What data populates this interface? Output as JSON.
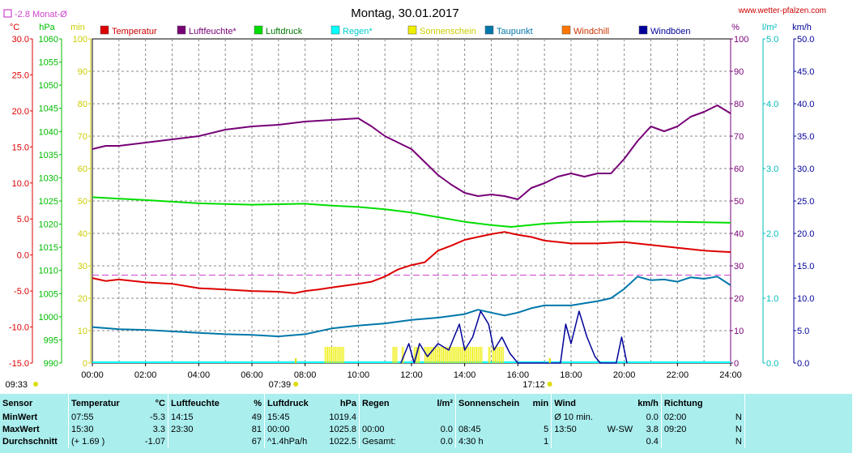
{
  "title": "Montag, 30.01.2017",
  "site": "www.wetter-pfalzen.com",
  "month_avg_label": "-2.8 Monat-Ø",
  "colors": {
    "temperature": "#dd0000",
    "humidity": "#770077",
    "pressure": "#00dd00",
    "rain": "#00ffff",
    "sunshine": "#eeee00",
    "dewpoint": "#0077aa",
    "windchill": "#ff7700",
    "gusts": "#000099",
    "month_avg": "#cc44cc"
  },
  "axes": {
    "temp": {
      "unit": "°C",
      "min": -15,
      "max": 30,
      "step": 5,
      "labels": [
        "-15.0",
        "-10.0",
        "-5.0",
        "0.0",
        "5.0",
        "10.0",
        "15.0",
        "20.0",
        "25.0",
        "30.0"
      ]
    },
    "pressure": {
      "unit": "hPa",
      "min": 990,
      "max": 1060,
      "step": 5,
      "labels": [
        "990",
        "995",
        "1000",
        "1005",
        "1010",
        "1015",
        "1020",
        "1025",
        "1030",
        "1035",
        "1040",
        "1045",
        "1050",
        "1055",
        "1060"
      ]
    },
    "minutes": {
      "unit": "min",
      "min": 0,
      "max": 100,
      "step": 10,
      "labels": [
        "0",
        "10",
        "20",
        "30",
        "40",
        "50",
        "60",
        "70",
        "80",
        "90",
        "100"
      ]
    },
    "percent": {
      "unit": "%",
      "min": 0,
      "max": 100,
      "step": 10,
      "labels": [
        "0",
        "10",
        "20",
        "30",
        "40",
        "50",
        "60",
        "70",
        "80",
        "90",
        "100"
      ]
    },
    "rain": {
      "unit": "l/m²",
      "min": 0,
      "max": 5,
      "step": 1,
      "labels": [
        "0.0",
        "1.0",
        "2.0",
        "3.0",
        "4.0",
        "5.0"
      ]
    },
    "wind": {
      "unit": "km/h",
      "min": 0,
      "max": 50,
      "step": 5,
      "labels": [
        "0.0",
        "5.0",
        "10.0",
        "15.0",
        "20.0",
        "25.0",
        "30.0",
        "35.0",
        "40.0",
        "45.0",
        "50.0"
      ]
    },
    "x": {
      "labels": [
        "00:00",
        "02:00",
        "04:00",
        "06:00",
        "08:00",
        "10:00",
        "12:00",
        "14:00",
        "16:00",
        "18:00",
        "20:00",
        "22:00",
        "24:00"
      ]
    }
  },
  "sun_events": [
    {
      "label": "09:33",
      "hour": -3.5
    },
    {
      "label": "07:39",
      "hour": 7.65
    },
    {
      "label": "17:12",
      "hour": 17.2
    }
  ],
  "chart_data": {
    "type": "line",
    "title": "Montag, 30.01.2017",
    "x_unit": "hour",
    "xlim": [
      0,
      24
    ],
    "grid": true,
    "legend": [
      "Temperatur",
      "Luftfeuchte*",
      "Luftdruck",
      "Regen*",
      "Sonnenschein",
      "Taupunkt",
      "Windchill",
      "Windböen"
    ],
    "month_avg_temp": -2.8,
    "series": [
      {
        "name": "Temperatur",
        "axis": "temp",
        "points": [
          [
            0,
            -3.2
          ],
          [
            0.5,
            -3.6
          ],
          [
            1,
            -3.4
          ],
          [
            2,
            -3.8
          ],
          [
            3,
            -4.0
          ],
          [
            4,
            -4.6
          ],
          [
            5,
            -4.8
          ],
          [
            6,
            -5.0
          ],
          [
            7,
            -5.1
          ],
          [
            7.6,
            -5.3
          ],
          [
            8,
            -5.0
          ],
          [
            8.5,
            -4.8
          ],
          [
            9,
            -4.5
          ],
          [
            10,
            -4.0
          ],
          [
            10.5,
            -3.7
          ],
          [
            11,
            -3.0
          ],
          [
            11.5,
            -2.0
          ],
          [
            12,
            -1.4
          ],
          [
            12.5,
            -1.0
          ],
          [
            13,
            0.6
          ],
          [
            13.5,
            1.3
          ],
          [
            14,
            2.1
          ],
          [
            14.5,
            2.5
          ],
          [
            15,
            2.9
          ],
          [
            15.5,
            3.2
          ],
          [
            16,
            2.8
          ],
          [
            16.5,
            2.5
          ],
          [
            17,
            2.0
          ],
          [
            18,
            1.6
          ],
          [
            19,
            1.6
          ],
          [
            20,
            1.8
          ],
          [
            21,
            1.4
          ],
          [
            22,
            1.0
          ],
          [
            23,
            0.6
          ],
          [
            24,
            0.4
          ]
        ]
      },
      {
        "name": "Luftfeuchte*",
        "axis": "percent",
        "points": [
          [
            0,
            66
          ],
          [
            0.5,
            67
          ],
          [
            1,
            67
          ],
          [
            2,
            68
          ],
          [
            3,
            69
          ],
          [
            4,
            70
          ],
          [
            5,
            72
          ],
          [
            6,
            73
          ],
          [
            7,
            73.5
          ],
          [
            8,
            74.5
          ],
          [
            9,
            75
          ],
          [
            10,
            75.5
          ],
          [
            10.5,
            73
          ],
          [
            11,
            70
          ],
          [
            11.5,
            68
          ],
          [
            12,
            66
          ],
          [
            12.5,
            62
          ],
          [
            13,
            58
          ],
          [
            13.5,
            55
          ],
          [
            14,
            52.5
          ],
          [
            14.5,
            51.5
          ],
          [
            15,
            52
          ],
          [
            15.5,
            51.5
          ],
          [
            16,
            50.5
          ],
          [
            16.5,
            54
          ],
          [
            17,
            55.5
          ],
          [
            17.5,
            57.5
          ],
          [
            18,
            58.5
          ],
          [
            18.5,
            57.5
          ],
          [
            19,
            58.5
          ],
          [
            19.5,
            58.5
          ],
          [
            20,
            63
          ],
          [
            20.5,
            68.5
          ],
          [
            21,
            73
          ],
          [
            21.5,
            71.5
          ],
          [
            22,
            73
          ],
          [
            22.5,
            76
          ],
          [
            23,
            77.5
          ],
          [
            23.5,
            79.5
          ],
          [
            24,
            77
          ]
        ]
      },
      {
        "name": "Luftdruck",
        "axis": "pressure",
        "points": [
          [
            0,
            1025.8
          ],
          [
            2,
            1025.2
          ],
          [
            4,
            1024.5
          ],
          [
            6,
            1024.2
          ],
          [
            8,
            1024.4
          ],
          [
            9,
            1024.0
          ],
          [
            10,
            1023.7
          ],
          [
            11,
            1023.2
          ],
          [
            12,
            1022.5
          ],
          [
            13,
            1021.5
          ],
          [
            14,
            1020.5
          ],
          [
            15,
            1019.8
          ],
          [
            15.75,
            1019.4
          ],
          [
            17,
            1020.1
          ],
          [
            18,
            1020.4
          ],
          [
            20,
            1020.6
          ],
          [
            22,
            1020.5
          ],
          [
            24,
            1020.3
          ]
        ]
      },
      {
        "name": "Taupunkt",
        "axis": "temp",
        "points": [
          [
            0,
            -10.0
          ],
          [
            1,
            -10.3
          ],
          [
            2,
            -10.4
          ],
          [
            3,
            -10.6
          ],
          [
            4,
            -10.8
          ],
          [
            5,
            -11.0
          ],
          [
            6,
            -11.1
          ],
          [
            7,
            -11.3
          ],
          [
            8,
            -11.0
          ],
          [
            9,
            -10.2
          ],
          [
            10,
            -9.8
          ],
          [
            11,
            -9.5
          ],
          [
            12,
            -9.0
          ],
          [
            13,
            -8.7
          ],
          [
            14,
            -8.2
          ],
          [
            14.5,
            -7.6
          ],
          [
            15,
            -8.0
          ],
          [
            15.5,
            -8.4
          ],
          [
            16,
            -8.0
          ],
          [
            16.5,
            -7.4
          ],
          [
            17,
            -7.0
          ],
          [
            18,
            -7.0
          ],
          [
            19,
            -6.4
          ],
          [
            19.5,
            -6.0
          ],
          [
            20,
            -4.7
          ],
          [
            20.5,
            -3.0
          ],
          [
            21,
            -3.5
          ],
          [
            21.5,
            -3.4
          ],
          [
            22,
            -3.7
          ],
          [
            22.5,
            -3.1
          ],
          [
            23,
            -3.3
          ],
          [
            23.5,
            -3.0
          ],
          [
            24,
            -4.2
          ]
        ]
      },
      {
        "name": "Windböen",
        "axis": "wind",
        "points": [
          [
            11.6,
            0
          ],
          [
            11.9,
            3
          ],
          [
            12.1,
            0
          ],
          [
            12.3,
            3
          ],
          [
            12.6,
            1
          ],
          [
            13,
            3
          ],
          [
            13.4,
            2
          ],
          [
            13.8,
            6
          ],
          [
            14.0,
            2
          ],
          [
            14.3,
            4
          ],
          [
            14.6,
            8
          ],
          [
            14.9,
            6
          ],
          [
            15.1,
            2
          ],
          [
            15.4,
            4
          ],
          [
            15.7,
            1.5
          ],
          [
            16,
            0
          ],
          [
            17.6,
            0
          ],
          [
            17.8,
            6
          ],
          [
            18.0,
            3
          ],
          [
            18.3,
            8
          ],
          [
            18.6,
            4
          ],
          [
            18.9,
            1
          ],
          [
            19.1,
            0
          ],
          [
            19.7,
            0
          ],
          [
            19.9,
            4
          ],
          [
            20.1,
            0
          ]
        ]
      }
    ],
    "sunshine_minutes": [
      [
        8.75,
        9.5
      ],
      [
        11.3,
        11.5
      ],
      [
        11.65,
        11.75
      ],
      [
        12.1,
        12.35
      ],
      [
        12.5,
        14.7
      ],
      [
        14.9,
        15.0
      ],
      [
        15.05,
        15.5
      ]
    ]
  },
  "stats": {
    "headers": {
      "sensor": "Sensor",
      "temp": "Temperatur",
      "temp_unit": "°C",
      "hum": "Luftfeuchte",
      "hum_unit": "%",
      "press": "Luftdruck",
      "press_unit": "hPa",
      "rain": "Regen",
      "rain_unit": "l/m²",
      "sun": "Sonnenschein",
      "sun_unit": "min",
      "wind": "Wind",
      "wind_unit": "km/h",
      "dir": "Richtung"
    },
    "rows": [
      {
        "label": "MinWert",
        "t_time": "07:55",
        "t_val": "-5.3",
        "h_time": "14:15",
        "h_val": "49",
        "p_time": "15:45",
        "p_val": "1019.4",
        "r_time": "",
        "r_val": "",
        "s_time": "",
        "s_val": "",
        "w_time": "Ø 10 min.",
        "w_dir": "",
        "w_val": "0.0",
        "d_time": "02:00",
        "d_val": "N"
      },
      {
        "label": "MaxWert",
        "t_time": "15:30",
        "t_val": "3.3",
        "h_time": "23:30",
        "h_val": "81",
        "p_time": "00:00",
        "p_val": "1025.8",
        "r_time": "00:00",
        "r_val": "0.0",
        "s_time": "08:45",
        "s_val": "5",
        "w_time": "13:50",
        "w_dir": "W-SW",
        "w_val": "3.8",
        "d_time": "09:20",
        "d_val": "N"
      },
      {
        "label": "Durchschnitt",
        "t_time": "(+ 1.69 )",
        "t_val": "-1.07",
        "h_time": "",
        "h_val": "67",
        "p_time": "^1.4hPa/h",
        "p_val": "1022.5",
        "r_time": "Gesamt:",
        "r_val": "0.0",
        "s_time": "4:30 h",
        "s_val": "1",
        "w_time": "",
        "w_dir": "",
        "w_val": "0.4",
        "d_time": "",
        "d_val": "N"
      }
    ]
  }
}
